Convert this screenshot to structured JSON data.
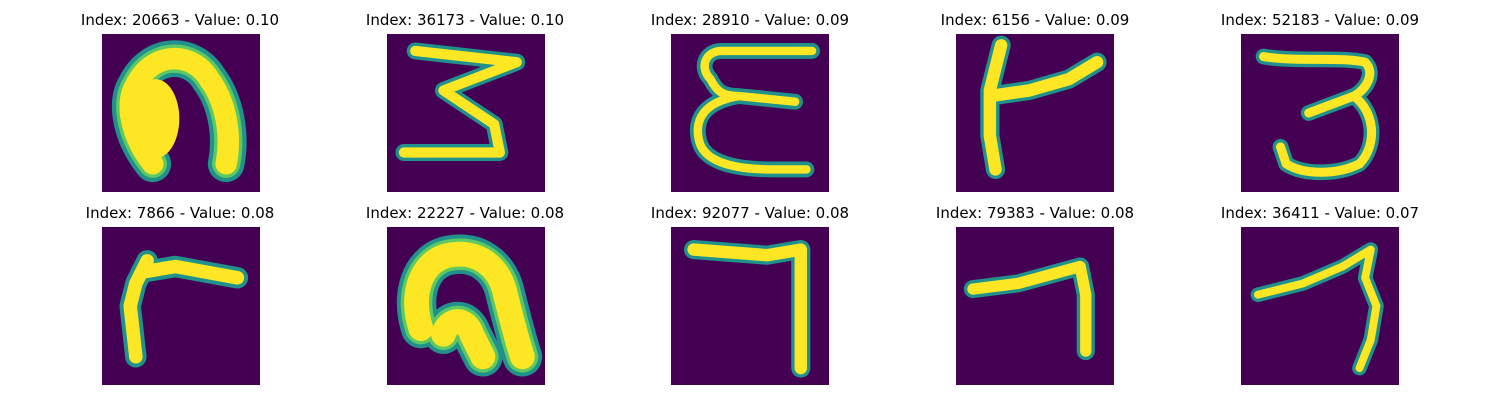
{
  "colors": {
    "background": "#440154",
    "stroke_core": "#fde725",
    "stroke_mid": "#5ec962",
    "stroke_edge": "#21918c"
  },
  "tiles": [
    {
      "title": "Index: 20663 - Value: 0.10",
      "glyph": "blob-n"
    },
    {
      "title": "Index: 36173 - Value: 0.10",
      "glyph": "three-z"
    },
    {
      "title": "Index: 28910 - Value: 0.09",
      "glyph": "epsilon"
    },
    {
      "title": "Index: 6156 - Value: 0.09",
      "glyph": "k-like"
    },
    {
      "title": "Index: 52183 - Value: 0.09",
      "glyph": "three"
    },
    {
      "title": "Index: 7866 - Value: 0.08",
      "glyph": "r-like"
    },
    {
      "title": "Index: 22227 - Value: 0.08",
      "glyph": "blob-a"
    },
    {
      "title": "Index: 92077 - Value: 0.08",
      "glyph": "seven-flat"
    },
    {
      "title": "Index: 79383 - Value: 0.08",
      "glyph": "seven-slant"
    },
    {
      "title": "Index: 36411 - Value: 0.07",
      "glyph": "seven-curly"
    }
  ]
}
